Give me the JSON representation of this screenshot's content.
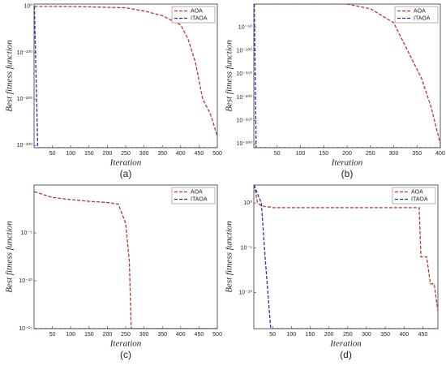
{
  "chart_data": [
    {
      "type": "line",
      "caption": "(a)",
      "xlabel": "Iteration",
      "ylabel": "Best fitness function",
      "yscale": "log",
      "legend": "upper right",
      "x": [
        1,
        10,
        50,
        100,
        150,
        200,
        250,
        300,
        350,
        400,
        420,
        440,
        460,
        480,
        500
      ],
      "series": [
        {
          "name": "AOA",
          "color": "#b03a2e",
          "values": [
            1,
            1,
            1,
            0.5,
            0.1,
            0.01,
            0.001,
            1e-10,
            1e-20,
            1e-40,
            1e-70,
            1e-120,
            1e-200,
            1e-230,
            1e-280
          ]
        },
        {
          "name": "ITAOA",
          "color": "#2233aa",
          "values": [
            1,
            1e-305,
            1e-305,
            1e-305,
            1e-305,
            1e-305,
            1e-305,
            1e-305,
            1e-305,
            1e-305,
            1e-305,
            1e-305,
            1e-305,
            1e-305,
            1e-305
          ]
        }
      ],
      "xlim": [
        0,
        500
      ],
      "xticks": [
        50,
        100,
        150,
        200,
        250,
        300,
        350,
        400,
        450,
        500
      ],
      "ylim": [
        1e-305,
        100000.0
      ],
      "yticks": [
        {
          "value": 1,
          "label": "10⁰"
        },
        {
          "value": 1e-100,
          "label": "10⁻¹⁰⁰"
        },
        {
          "value": 1e-200,
          "label": "10⁻²⁰⁰"
        },
        {
          "value": 1e-300,
          "label": "10⁻³⁰⁰"
        }
      ]
    },
    {
      "type": "line",
      "caption": "(b)",
      "xlabel": "Iteration",
      "ylabel": "Best fitness function",
      "yscale": "log",
      "legend": "upper right",
      "x": [
        1,
        5,
        50,
        100,
        150,
        200,
        250,
        300,
        320,
        340,
        360,
        380,
        400
      ],
      "series": [
        {
          "name": "AOA",
          "color": "#b03a2e",
          "values": [
            1,
            1,
            1,
            1,
            1,
            1,
            1e-10,
            1e-40,
            1e-80,
            1e-120,
            1e-160,
            1e-220,
            1e-300
          ]
        },
        {
          "name": "ITAOA",
          "color": "#2233aa",
          "values": [
            1,
            1e-308,
            1e-308,
            1e-308,
            1e-308,
            1e-308,
            1e-308,
            1e-308,
            1e-308,
            1e-308,
            1e-308,
            1e-308,
            1e-308
          ]
        }
      ],
      "xlim": [
        0,
        400
      ],
      "xticks": [
        50,
        100,
        150,
        200,
        250,
        300,
        350,
        400
      ],
      "ylim": [
        1e-308,
        1
      ],
      "yticks": [
        {
          "value": 1e-50,
          "label": "10⁻⁵⁰"
        },
        {
          "value": 1e-100,
          "label": "10⁻¹⁰⁰"
        },
        {
          "value": 1e-150,
          "label": "10⁻¹⁵⁰"
        },
        {
          "value": 1e-200,
          "label": "10⁻²⁰⁰"
        },
        {
          "value": 1e-250,
          "label": "10⁻²⁵⁰"
        },
        {
          "value": 1e-300,
          "label": "10⁻³⁰⁰"
        }
      ]
    },
    {
      "type": "line",
      "caption": "(c)",
      "xlabel": "Iteration",
      "ylabel": "Best fitness function",
      "yscale": "log",
      "legend": "upper right",
      "x": [
        1,
        50,
        100,
        150,
        200,
        230,
        240,
        250,
        260,
        265,
        300,
        400,
        500
      ],
      "series": [
        {
          "name": "AOA",
          "color": "#b03a2e",
          "values": [
            0.2,
            0.05,
            0.03,
            0.02,
            0.015,
            0.01,
            0.001,
            0.0001,
            1e-08,
            1e-15,
            1e-15,
            1e-15,
            1e-15
          ]
        },
        {
          "name": "ITAOA",
          "color": "#2233aa",
          "values": [
            1e-15,
            1e-15,
            1e-15,
            1e-15,
            1e-15,
            1e-15,
            1e-15,
            1e-15,
            1e-15,
            1e-15,
            1e-15,
            1e-15,
            1e-15
          ]
        }
      ],
      "xlim": [
        0,
        500
      ],
      "xticks": [
        50,
        100,
        150,
        200,
        250,
        300,
        350,
        400,
        450,
        500
      ],
      "ylim": [
        1e-15,
        1
      ],
      "yticks": [
        {
          "value": 1e-05,
          "label": "10⁻⁵"
        },
        {
          "value": 1e-10,
          "label": "10⁻¹⁰"
        },
        {
          "value": 1e-15,
          "label": "10⁻¹⁵"
        }
      ]
    },
    {
      "type": "line",
      "caption": "(d)",
      "xlabel": "Iteration",
      "ylabel": "Best fitness function",
      "yscale": "log",
      "legend": "upper right",
      "x": [
        1,
        10,
        20,
        30,
        45,
        50,
        100,
        200,
        300,
        400,
        440,
        445,
        460,
        470,
        480,
        490
      ],
      "series": [
        {
          "name": "AOA",
          "color": "#b03a2e",
          "values": [
            100,
            1,
            0.5,
            0.4,
            0.35,
            0.3,
            0.3,
            0.3,
            0.3,
            0.3,
            0.3,
            1e-06,
            1e-06,
            1e-09,
            1e-09,
            1e-12
          ]
        },
        {
          "name": "ITAOA",
          "color": "#2233aa",
          "values": [
            100,
            10,
            1,
            1e-06,
            1e-14,
            1e-14,
            1e-14,
            1e-14,
            1e-14,
            1e-14,
            1e-14,
            1e-14,
            1e-14,
            1e-14,
            1e-14,
            1e-14
          ]
        }
      ],
      "xlim": [
        0,
        490
      ],
      "xticks": [
        50,
        100,
        150,
        200,
        250,
        300,
        350,
        400,
        450
      ],
      "ylim": [
        1e-14,
        100
      ],
      "yticks": [
        {
          "value": 1,
          "label": "10⁰"
        },
        {
          "value": 1e-05,
          "label": "10⁻⁵"
        },
        {
          "value": 1e-10,
          "label": "10⁻¹⁰"
        }
      ]
    }
  ]
}
